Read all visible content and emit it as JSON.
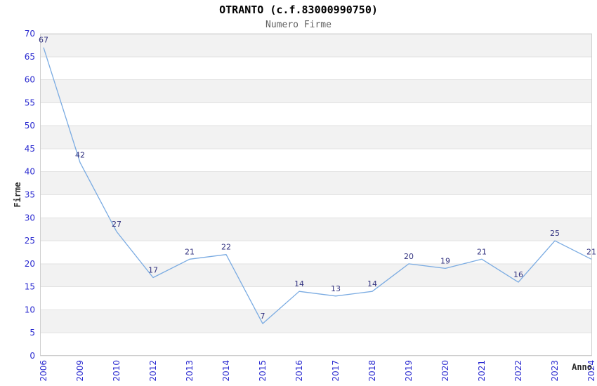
{
  "chart_data": {
    "type": "line",
    "title": "OTRANTO (c.f.83000990750)",
    "subtitle": "Numero Firme",
    "xlabel": "Anno",
    "ylabel": "Firme",
    "categories": [
      "2006",
      "2009",
      "2010",
      "2012",
      "2013",
      "2014",
      "2015",
      "2016",
      "2017",
      "2018",
      "2019",
      "2020",
      "2021",
      "2022",
      "2023",
      "2024"
    ],
    "values": [
      67,
      42,
      27,
      17,
      21,
      22,
      7,
      14,
      13,
      14,
      20,
      19,
      21,
      16,
      25,
      21
    ],
    "ylim": [
      0,
      70
    ],
    "ytick_step": 5,
    "grid": true,
    "legend": "none",
    "band_fill": "alternating horizontal bands",
    "colors": {
      "line": "#7aabe2",
      "tick_label": "#2a2ad0",
      "data_label": "#333380",
      "band": "#f2f2f2",
      "grid_line": "#e2e2e2",
      "plot_border": "#cfcfcf",
      "title": "#000000",
      "subtitle": "#606060",
      "axis_title": "#2b2b2b"
    }
  }
}
